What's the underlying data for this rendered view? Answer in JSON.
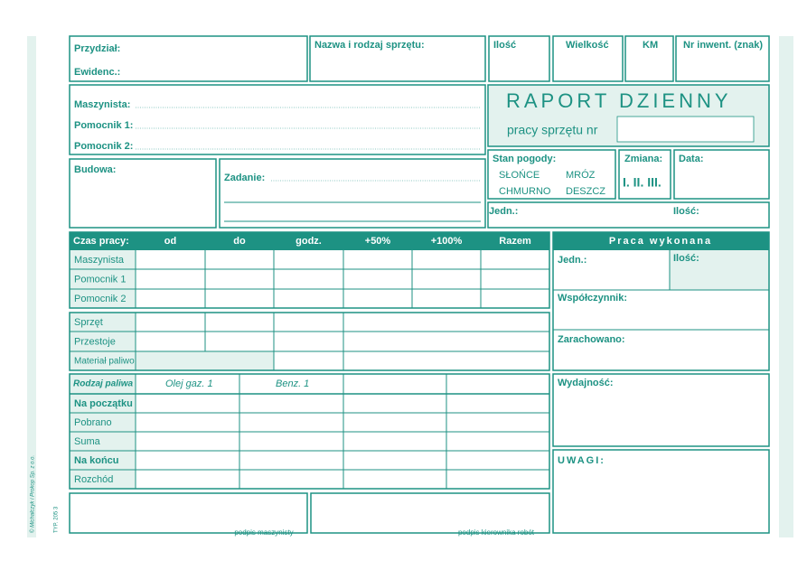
{
  "header": {
    "przydzial": "Przydział:",
    "ewidenc": "Ewidenc.:",
    "equipment": "Nazwa i rodzaj sprzętu:",
    "quantity": "Ilość",
    "size": "Wielkość",
    "km": "KM",
    "inventory": "Nr inwent. (znak)"
  },
  "title": {
    "main": "RAPORT DZIENNY",
    "sub": "pracy sprzętu nr"
  },
  "staff": {
    "operator": "Maszynista:",
    "helper1": "Pomocnik 1:",
    "helper2": "Pomocnik 2:",
    "site": "Budowa:",
    "task": "Zadanie:"
  },
  "weather": {
    "label": "Stan pogody:",
    "options": [
      "SŁOŃCE",
      "MRÓZ",
      "CHMURNO",
      "DESZCZ"
    ],
    "shift": "Zmiana:",
    "shifts": "I. II. III.",
    "date": "Data:",
    "unit": "Jedn.:",
    "amount": "Ilość:"
  },
  "time_table": {
    "header": [
      "Czas pracy:",
      "od",
      "do",
      "godz.",
      "+50%",
      "+100%",
      "Razem"
    ],
    "rows": [
      "Maszynista",
      "Pomocnik 1",
      "Pomocnik 2"
    ]
  },
  "equipment_table": {
    "rows": [
      "Sprzęt",
      "Przestoje",
      "Materiał paliwo"
    ]
  },
  "fuel_table": {
    "header": [
      "Rodzaj paliwa",
      "Olej gaz. 1",
      "Benz. 1"
    ],
    "rows": [
      "Na początku",
      "Pobrano",
      "Suma",
      "Na końcu",
      "Rozchód"
    ]
  },
  "work_done": {
    "title": "Praca wykonana",
    "unit": "Jedn.:",
    "amount": "Ilość:",
    "factor": "Współczynnik:",
    "booked": "Zarachowano:",
    "efficiency": "Wydajność:",
    "notes": "UWAGI:"
  },
  "signatures": [
    "podpis maszynisty",
    "podpis kierownika robót"
  ],
  "imprint": [
    "© Michalczyk i Prokop Sp. z o.o.",
    "TYP. 205 3"
  ]
}
